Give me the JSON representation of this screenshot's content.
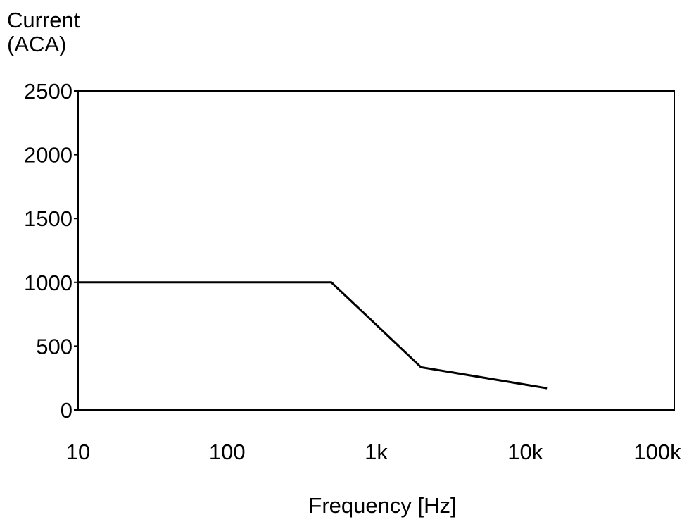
{
  "chart_data": {
    "type": "line",
    "title": "",
    "ylabel": [
      "Current",
      "(ACA)"
    ],
    "xlabel": "Frequency [Hz]",
    "x_scale": "log",
    "xlim": [
      10,
      100000
    ],
    "ylim": [
      0,
      2500
    ],
    "x_ticks": [
      {
        "value": 10,
        "label": "10"
      },
      {
        "value": 100,
        "label": "100"
      },
      {
        "value": 1000,
        "label": "1k"
      },
      {
        "value": 10000,
        "label": "10k"
      },
      {
        "value": 100000,
        "label": "100k"
      }
    ],
    "y_ticks": [
      {
        "value": 0,
        "label": "0"
      },
      {
        "value": 500,
        "label": "500"
      },
      {
        "value": 1000,
        "label": "1000"
      },
      {
        "value": 1500,
        "label": "1500"
      },
      {
        "value": 2000,
        "label": "2000"
      },
      {
        "value": 2500,
        "label": "2500"
      }
    ],
    "grid": false,
    "series": [
      {
        "color": "#000000",
        "points": [
          {
            "x": 10,
            "y": 1000
          },
          {
            "x": 500,
            "y": 1000
          },
          {
            "x": 2000,
            "y": 335
          },
          {
            "x": 14000,
            "y": 170
          }
        ]
      }
    ]
  }
}
